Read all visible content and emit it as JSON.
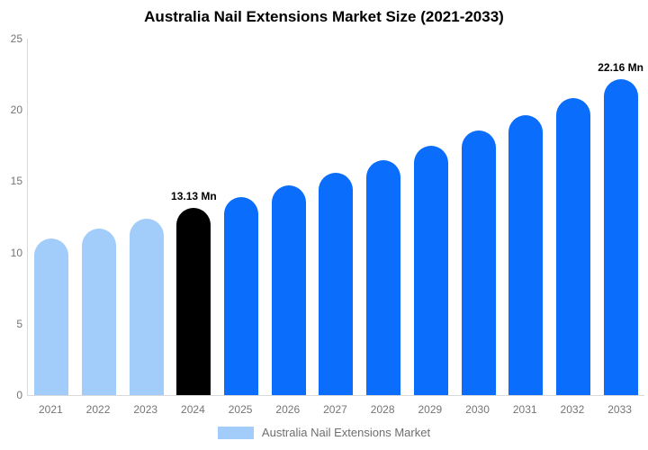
{
  "title": "Australia Nail Extensions Market Size (2021-2033)",
  "colors": {
    "light_blue": "#A2CDFB",
    "bright_blue": "#0A6DFB",
    "highlight_black": "#000000",
    "axis_line": "#d9d9d9",
    "tick_text": "#757575",
    "legend_text": "#6e6e6e",
    "data_label_text": "#000000",
    "background": "#ffffff"
  },
  "y_axis": {
    "ticks": [
      0,
      5,
      10,
      15,
      20,
      25
    ],
    "max": 25
  },
  "legend": {
    "label": "Australia Nail Extensions Market",
    "swatch_color": "#A2CDFB"
  },
  "chart_data": {
    "type": "bar",
    "title": "Australia Nail Extensions Market Size (2021-2033)",
    "categories": [
      "2021",
      "2022",
      "2023",
      "2024",
      "2025",
      "2026",
      "2027",
      "2028",
      "2029",
      "2030",
      "2031",
      "2032",
      "2033"
    ],
    "values": [
      11.0,
      11.7,
      12.4,
      13.13,
      13.9,
      14.7,
      15.6,
      16.5,
      17.5,
      18.55,
      19.65,
      20.85,
      22.16
    ],
    "unit": "Mn",
    "bar_colors": [
      "#A2CDFB",
      "#A2CDFB",
      "#A2CDFB",
      "#000000",
      "#0A6DFB",
      "#0A6DFB",
      "#0A6DFB",
      "#0A6DFB",
      "#0A6DFB",
      "#0A6DFB",
      "#0A6DFB",
      "#0A6DFB",
      "#0A6DFB"
    ],
    "point_labels": [
      "",
      "",
      "",
      "13.13 Mn",
      "",
      "",
      "",
      "",
      "",
      "",
      "",
      "",
      "22.16 Mn"
    ],
    "xlabel": "",
    "ylabel": "",
    "ylim": [
      0,
      25
    ],
    "grid": false,
    "legend_entries": [
      "Australia Nail Extensions Market"
    ],
    "legend_position": "bottom"
  }
}
